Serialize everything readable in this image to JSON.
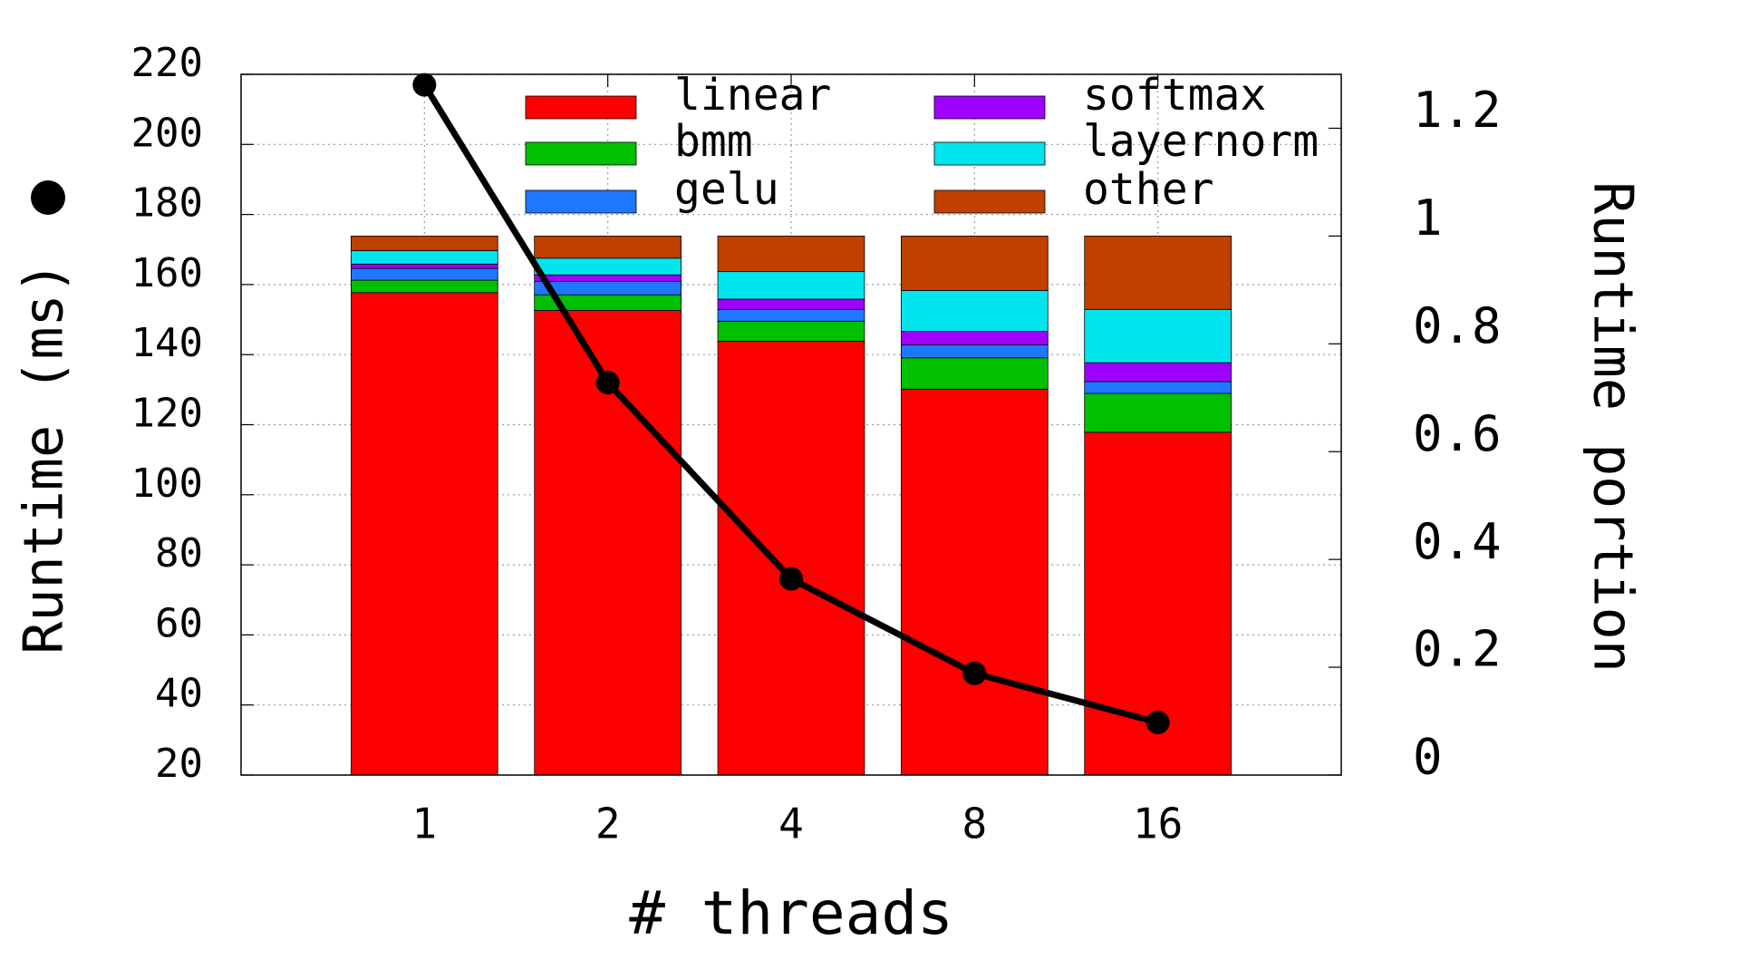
{
  "chart_data": {
    "type": "bar_line",
    "xlabel": "# threads",
    "ylabel": "Runtime (ms)",
    "y2label": "Runtime portion",
    "categories": [
      "1",
      "2",
      "4",
      "8",
      "16"
    ],
    "ylim": [
      20,
      220
    ],
    "yticks": [
      20,
      40,
      60,
      80,
      100,
      120,
      140,
      160,
      180,
      200,
      220
    ],
    "y2lim": [
      0,
      1.3
    ],
    "y2ticks": [
      0,
      0.2,
      0.4,
      0.6,
      0.8,
      1,
      1.2
    ],
    "grid": true,
    "series": [
      {
        "name": "linear",
        "color": "#ff0000",
        "axis": "y2",
        "values": [
          0.895,
          0.862,
          0.805,
          0.716,
          0.636
        ]
      },
      {
        "name": "bmm",
        "color": "#00c000",
        "axis": "y2",
        "values": [
          0.023,
          0.029,
          0.037,
          0.058,
          0.072
        ]
      },
      {
        "name": "gelu",
        "color": "#1e78ff",
        "axis": "y2",
        "values": [
          0.022,
          0.025,
          0.022,
          0.024,
          0.022
        ]
      },
      {
        "name": "softmax",
        "color": "#a000ff",
        "axis": "y2",
        "values": [
          0.008,
          0.012,
          0.019,
          0.025,
          0.035
        ]
      },
      {
        "name": "layernorm",
        "color": "#00e5ee",
        "axis": "y2",
        "values": [
          0.025,
          0.031,
          0.051,
          0.076,
          0.099
        ]
      },
      {
        "name": "other",
        "color": "#c04000",
        "axis": "y2",
        "values": [
          0.027,
          0.041,
          0.066,
          0.101,
          0.136
        ]
      }
    ],
    "line": {
      "color": "#000000",
      "axis": "y",
      "values": [
        217,
        132,
        76,
        49,
        35
      ]
    }
  }
}
